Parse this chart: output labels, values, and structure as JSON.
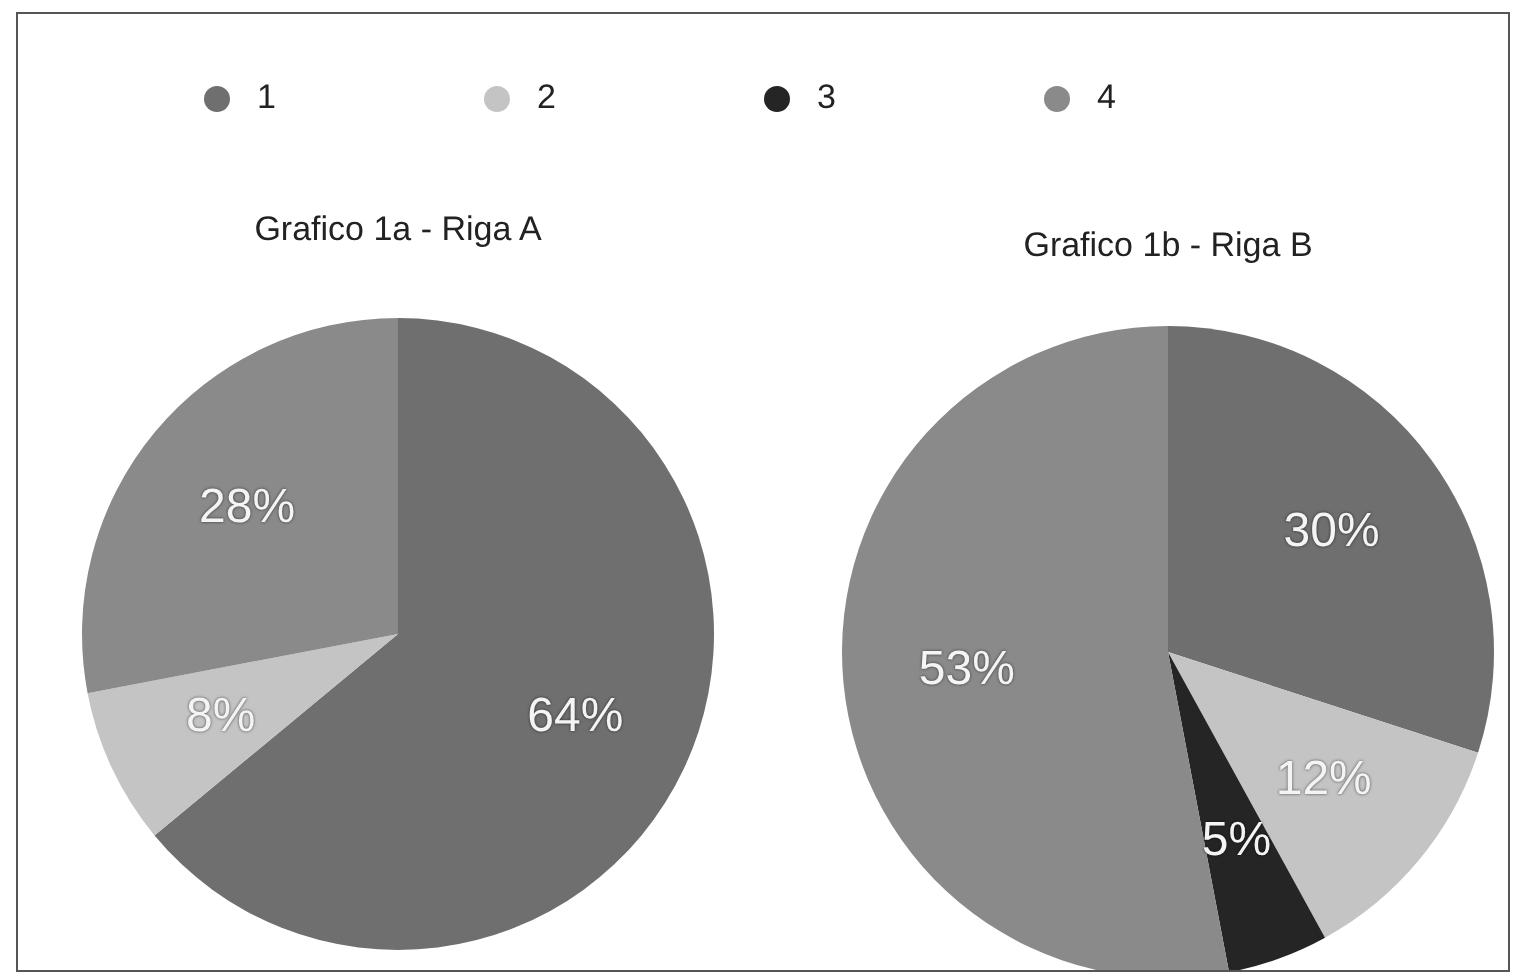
{
  "chart_data": [
    {
      "type": "pie",
      "title": "Grafico 1a - Riga A",
      "categories": [
        "1",
        "2",
        "3",
        "4"
      ],
      "values": [
        64,
        8,
        null,
        28
      ],
      "colors": [
        "#6f6f6f",
        "#c4c4c4",
        "#252525",
        "#8a8a8a"
      ],
      "value_labels": [
        "64%",
        "8%",
        null,
        "28%"
      ],
      "legend": "top"
    },
    {
      "type": "pie",
      "title": "Grafico 1b - Riga B",
      "categories": [
        null,
        null,
        null,
        null
      ],
      "values": [
        30,
        12,
        5,
        53
      ],
      "colors": [
        "#6f6f6f",
        "#c4c4c4",
        "#252525",
        "#8a8a8a"
      ],
      "value_labels": [
        "30%",
        "12%",
        "5%",
        "53%"
      ]
    }
  ]
}
